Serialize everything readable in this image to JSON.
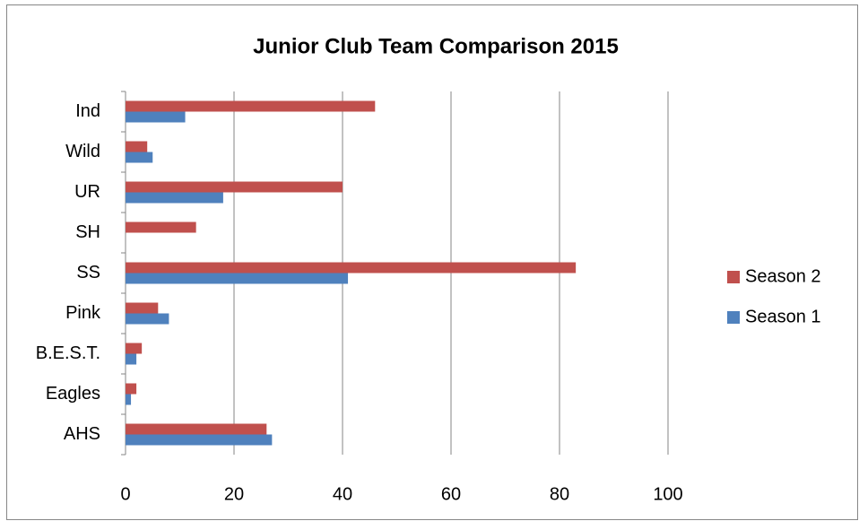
{
  "chart_data": {
    "type": "hbar",
    "title": "Junior Club Team Comparison 2015",
    "categories": [
      "AHS",
      "Eagles",
      "B.E.S.T.",
      "Pink",
      "SS",
      "SH",
      "UR",
      "Wild",
      "Ind"
    ],
    "series": [
      {
        "name": "Season 1",
        "color": "#4f81bd",
        "values": [
          27,
          1,
          2,
          8,
          41,
          0,
          18,
          5,
          11
        ]
      },
      {
        "name": "Season 2",
        "color": "#c0504d",
        "values": [
          26,
          2,
          3,
          6,
          83,
          13,
          40,
          4,
          46
        ]
      }
    ],
    "xlim": [
      0,
      100
    ],
    "xticks": [
      0,
      20,
      40,
      60,
      80,
      100
    ],
    "grid": true,
    "legend": "right"
  }
}
